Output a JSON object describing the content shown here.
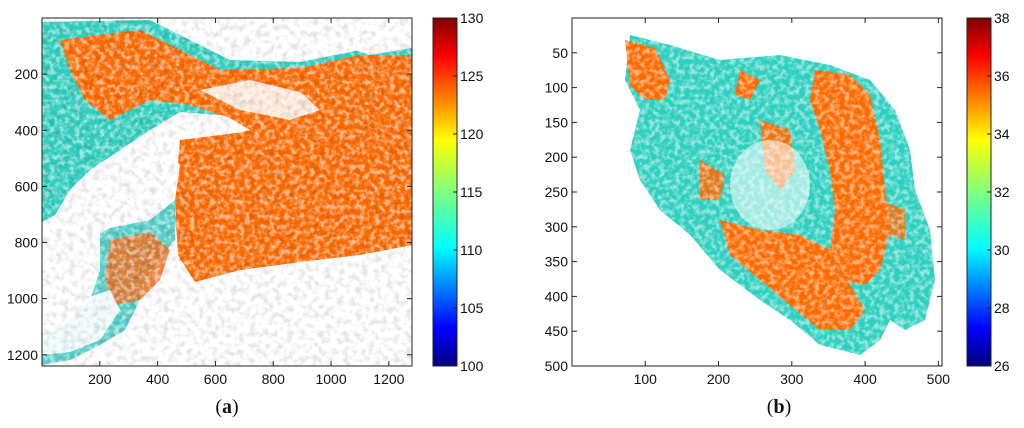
{
  "chart_data": [
    {
      "type": "heatmap",
      "panel_label": "a",
      "x_ticks": [
        200,
        400,
        600,
        800,
        1000,
        1200
      ],
      "y_ticks": [
        200,
        400,
        600,
        800,
        1000,
        1200
      ],
      "xlim": [
        0,
        1280
      ],
      "ylim": [
        1240,
        0
      ],
      "colorbar": {
        "min": 100,
        "max": 130,
        "ticks": [
          100,
          105,
          110,
          115,
          120,
          125,
          130
        ]
      },
      "dominant_value": 122
    },
    {
      "type": "heatmap",
      "panel_label": "b",
      "x_ticks": [
        100,
        200,
        300,
        400,
        500
      ],
      "y_ticks": [
        50,
        100,
        150,
        200,
        250,
        300,
        350,
        400,
        450,
        500
      ],
      "xlim": [
        0,
        505
      ],
      "ylim": [
        500,
        0
      ],
      "colorbar": {
        "min": 26,
        "max": 38,
        "ticks": [
          26,
          28,
          30,
          32,
          34,
          36,
          38
        ]
      },
      "dominant_value": 34.5
    }
  ],
  "colormap": "jet",
  "colors": {
    "orange": "#ff6a00",
    "background": "#ffffff"
  }
}
